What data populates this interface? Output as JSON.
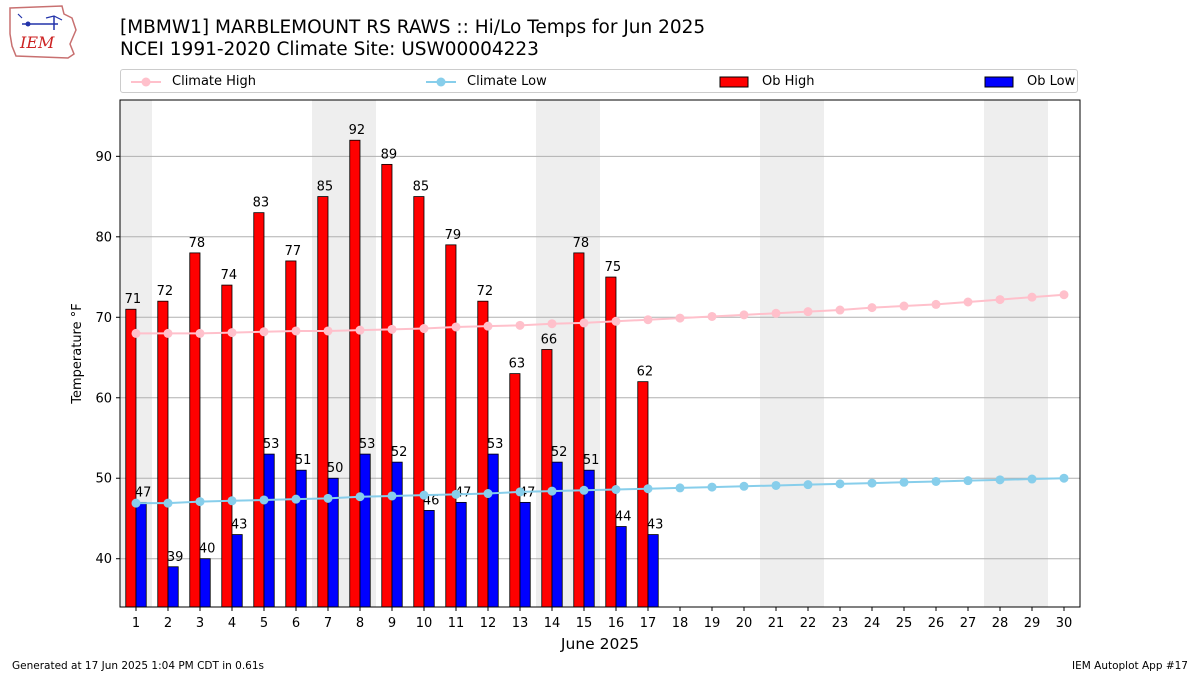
{
  "header": {
    "title_line1": "[MBMW1] MARBLEMOUNT RS RAWS :: Hi/Lo Temps for Jun 2025",
    "title_line2": "NCEI 1991-2020 Climate Site: USW00004223",
    "logo_text": "IEM"
  },
  "legend": {
    "items": [
      {
        "label": "Climate High",
        "color": "#ffc0cb",
        "kind": "line"
      },
      {
        "label": "Climate Low",
        "color": "#87ceeb",
        "kind": "line"
      },
      {
        "label": "Ob High",
        "color": "#ff0000",
        "kind": "bar"
      },
      {
        "label": "Ob Low",
        "color": "#0000ff",
        "kind": "bar"
      }
    ]
  },
  "footer": {
    "left": "Generated at 17 Jun 2025 1:04 PM CDT in 0.61s",
    "right": "IEM Autoplot App #17"
  },
  "chart_data": {
    "type": "bar",
    "xlabel": "June 2025",
    "ylabel": "Temperature °F",
    "ylim": [
      34,
      97
    ],
    "yticks": [
      40,
      50,
      60,
      70,
      80,
      90
    ],
    "xlim": [
      0.5,
      30.5
    ],
    "grid": "horizontal",
    "weekend_shading": [
      1,
      7,
      8,
      14,
      15,
      21,
      22,
      28,
      29
    ],
    "days": [
      1,
      2,
      3,
      4,
      5,
      6,
      7,
      8,
      9,
      10,
      11,
      12,
      13,
      14,
      15,
      16,
      17,
      18,
      19,
      20,
      21,
      22,
      23,
      24,
      25,
      26,
      27,
      28,
      29,
      30
    ],
    "series": [
      {
        "name": "Ob High",
        "kind": "bar",
        "color": "#ff0000",
        "values": [
          71,
          72,
          78,
          74,
          83,
          77,
          85,
          92,
          89,
          85,
          79,
          72,
          63,
          66,
          78,
          75,
          62
        ]
      },
      {
        "name": "Ob Low",
        "kind": "bar",
        "color": "#0000ff",
        "values": [
          47,
          39,
          40,
          43,
          53,
          51,
          50,
          53,
          52,
          46,
          47,
          53,
          47,
          52,
          51,
          44,
          43
        ]
      },
      {
        "name": "Climate High",
        "kind": "line",
        "color": "#ffc0cb",
        "values": [
          68.0,
          68.0,
          68.0,
          68.1,
          68.2,
          68.3,
          68.3,
          68.4,
          68.5,
          68.6,
          68.8,
          68.9,
          69.0,
          69.2,
          69.3,
          69.5,
          69.7,
          69.9,
          70.1,
          70.3,
          70.5,
          70.7,
          70.9,
          71.2,
          71.4,
          71.6,
          71.9,
          72.2,
          72.5,
          72.8
        ]
      },
      {
        "name": "Climate Low",
        "kind": "line",
        "color": "#87ceeb",
        "values": [
          46.9,
          46.9,
          47.1,
          47.2,
          47.3,
          47.4,
          47.5,
          47.7,
          47.8,
          47.9,
          48.0,
          48.1,
          48.3,
          48.4,
          48.5,
          48.6,
          48.7,
          48.8,
          48.9,
          49.0,
          49.1,
          49.2,
          49.3,
          49.4,
          49.5,
          49.6,
          49.7,
          49.8,
          49.9,
          50.0
        ]
      }
    ]
  }
}
